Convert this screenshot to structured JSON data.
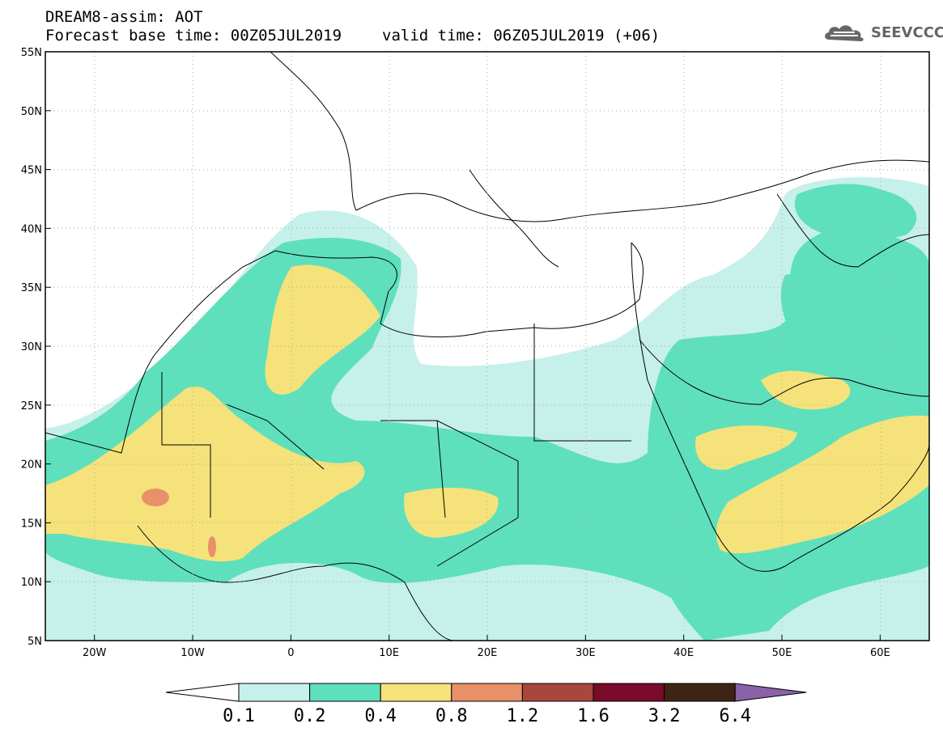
{
  "header": {
    "title_line1": "DREAM8-assim: AOT",
    "base_time": "Forecast base time: 00Z05JUL2019",
    "valid_time": "valid time: 06Z05JUL2019 (+06)"
  },
  "logo": {
    "text": "SEEVCCC",
    "icon": "cloud-icon"
  },
  "map": {
    "lon_range": [
      -25,
      65
    ],
    "lat_range": [
      5,
      55
    ],
    "lat_ticks": [
      {
        "value": 55,
        "label": "55N"
      },
      {
        "value": 50,
        "label": "50N"
      },
      {
        "value": 45,
        "label": "45N"
      },
      {
        "value": 40,
        "label": "40N"
      },
      {
        "value": 35,
        "label": "35N"
      },
      {
        "value": 30,
        "label": "30N"
      },
      {
        "value": 25,
        "label": "25N"
      },
      {
        "value": 20,
        "label": "20N"
      },
      {
        "value": 15,
        "label": "15N"
      },
      {
        "value": 10,
        "label": "10N"
      },
      {
        "value": 5,
        "label": "5N"
      }
    ],
    "lon_ticks": [
      {
        "value": -20,
        "label": "20W"
      },
      {
        "value": -10,
        "label": "10W"
      },
      {
        "value": 0,
        "label": "0"
      },
      {
        "value": 10,
        "label": "10E"
      },
      {
        "value": 20,
        "label": "20E"
      },
      {
        "value": 30,
        "label": "30E"
      },
      {
        "value": 40,
        "label": "40E"
      },
      {
        "value": 50,
        "label": "50E"
      },
      {
        "value": 60,
        "label": "60E"
      }
    ],
    "grid": "dotted",
    "colors": {
      "aot_0.1_0.2": "#c6f0ea",
      "aot_0.2_0.4": "#5ee0bc",
      "aot_0.4_0.8": "#f5e27a",
      "aot_0.8_1.2": "#e8906a"
    }
  },
  "colorbar": {
    "labels": [
      "0.1",
      "0.2",
      "0.4",
      "0.8",
      "1.2",
      "1.6",
      "3.2",
      "6.4"
    ],
    "colors": [
      "#c6f0ea",
      "#5ee0bc",
      "#f5e27a",
      "#e8906a",
      "#a8473d",
      "#7a0a2a",
      "#3d2414"
    ],
    "extend_low_color": "#ffffff",
    "extend_high_color": "#8a62a8"
  }
}
